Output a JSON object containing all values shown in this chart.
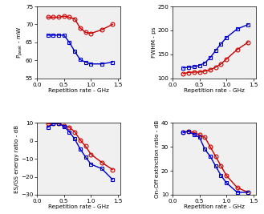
{
  "p_peak_x_red": [
    0.2,
    0.3,
    0.4,
    0.5,
    0.6,
    0.7,
    0.8,
    0.9,
    1.0,
    1.2,
    1.4
  ],
  "p_peak_red": [
    72.0,
    72.0,
    72.0,
    72.3,
    72.0,
    71.5,
    69.0,
    67.8,
    67.5,
    68.5,
    70.0
  ],
  "p_peak_x_blue": [
    0.2,
    0.3,
    0.4,
    0.5,
    0.6,
    0.7,
    0.8,
    0.9,
    1.0,
    1.2,
    1.4
  ],
  "p_peak_blue": [
    67.0,
    67.0,
    67.0,
    67.0,
    65.0,
    62.5,
    60.2,
    59.5,
    59.0,
    59.0,
    59.5
  ],
  "p_peak_ylim": [
    55,
    75
  ],
  "p_peak_yticks": [
    55,
    60,
    65,
    70,
    75
  ],
  "fwhm_x_red": [
    0.2,
    0.3,
    0.4,
    0.5,
    0.6,
    0.7,
    0.8,
    0.9,
    1.0,
    1.2,
    1.4
  ],
  "fwhm_red": [
    110,
    112,
    113,
    113,
    115,
    118,
    123,
    130,
    140,
    160,
    175
  ],
  "fwhm_x_blue": [
    0.2,
    0.3,
    0.4,
    0.5,
    0.6,
    0.7,
    0.8,
    0.9,
    1.0,
    1.2,
    1.4
  ],
  "fwhm_blue": [
    122,
    123,
    124,
    127,
    132,
    143,
    158,
    172,
    185,
    203,
    212
  ],
  "fwhm_ylim": [
    100,
    250
  ],
  "fwhm_yticks": [
    100,
    150,
    200,
    250
  ],
  "esgs_x_red": [
    0.2,
    0.3,
    0.4,
    0.5,
    0.6,
    0.7,
    0.8,
    0.9,
    1.0,
    1.2,
    1.4
  ],
  "esgs_red": [
    9.5,
    9.8,
    9.5,
    8.5,
    7.5,
    5.0,
    0.5,
    -3.0,
    -7.5,
    -12.0,
    -16.0
  ],
  "esgs_x_blue": [
    0.2,
    0.3,
    0.4,
    0.5,
    0.6,
    0.7,
    0.8,
    0.9,
    1.0,
    1.2,
    1.4
  ],
  "esgs_blue": [
    7.5,
    9.5,
    9.8,
    8.0,
    5.0,
    1.0,
    -4.5,
    -9.0,
    -13.0,
    -15.5,
    -21.5
  ],
  "esgs_ylim": [
    -30,
    10
  ],
  "esgs_yticks": [
    -30,
    -20,
    -10,
    0,
    10
  ],
  "onoff_x_red": [
    0.2,
    0.3,
    0.4,
    0.5,
    0.6,
    0.7,
    0.8,
    0.9,
    1.0,
    1.2,
    1.4
  ],
  "onoff_red": [
    36,
    36.5,
    36,
    35,
    34,
    30,
    26,
    22,
    18,
    13,
    11
  ],
  "onoff_x_blue": [
    0.2,
    0.3,
    0.4,
    0.5,
    0.6,
    0.7,
    0.8,
    0.9,
    1.0,
    1.2,
    1.4
  ],
  "onoff_blue": [
    36,
    36.5,
    35,
    34,
    29,
    26,
    22,
    18,
    15,
    11,
    11
  ],
  "onoff_ylim": [
    10,
    40
  ],
  "onoff_yticks": [
    10,
    20,
    30,
    40
  ],
  "color_red": "#cc0000",
  "color_blue": "#0000cc",
  "marker_red": "o",
  "marker_blue": "s",
  "xlabel": "Repetition rate - GHz",
  "ylabel_p": "P$_{peak}$ - mW",
  "ylabel_fwhm": "FWHM - ps",
  "ylabel_esgs": "ES/GS energy ratio - dB",
  "ylabel_onoff": "On-Off extinction ratio - dB",
  "xticks": [
    0,
    0.5,
    1.0,
    1.5
  ],
  "xlim": [
    0,
    1.55
  ]
}
